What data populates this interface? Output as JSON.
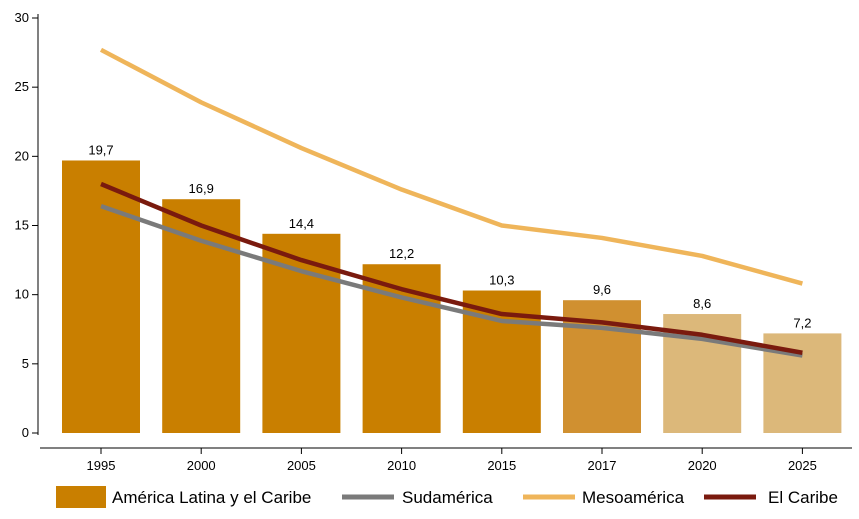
{
  "chart_data": {
    "type": "bar",
    "categories": [
      "1995",
      "2000",
      "2005",
      "2010",
      "2015",
      "2017",
      "2020",
      "2025"
    ],
    "bar_series": {
      "name": "América Latina y el Caribe",
      "values": [
        19.7,
        16.9,
        14.4,
        12.2,
        10.3,
        9.6,
        8.6,
        7.2
      ],
      "value_labels": [
        "19,7",
        "16,9",
        "14,4",
        "12,2",
        "10,3",
        "9,6",
        "8,6",
        "7,2"
      ],
      "colors": [
        "#c97f00",
        "#c97f00",
        "#c97f00",
        "#c97f00",
        "#c97f00",
        "#d09030",
        "#dcb87a",
        "#dcb87a"
      ]
    },
    "line_series": [
      {
        "name": "Sudamérica",
        "values": [
          16.4,
          13.9,
          11.7,
          9.8,
          8.1,
          7.6,
          6.8,
          5.6
        ],
        "color": "#7a7a7a"
      },
      {
        "name": "Mesoamérica",
        "values": [
          27.7,
          23.9,
          20.6,
          17.6,
          15.0,
          14.1,
          12.8,
          10.8
        ],
        "color": "#efb55a"
      },
      {
        "name": "El Caribe",
        "values": [
          18.0,
          15.0,
          12.5,
          10.4,
          8.6,
          8.0,
          7.1,
          5.8
        ],
        "color": "#7a1a0e"
      }
    ],
    "y_ticks": [
      "0",
      "5",
      "10",
      "15",
      "20",
      "25",
      "30"
    ],
    "ylim": [
      0,
      30
    ],
    "legend_position": "bottom",
    "grid": false
  },
  "legend": [
    {
      "label": "América Latina y el Caribe",
      "type": "box",
      "color": "#c97f00"
    },
    {
      "label": "Sudamérica",
      "type": "line",
      "color": "#7a7a7a"
    },
    {
      "label": "Mesoamérica",
      "type": "line",
      "color": "#efb55a"
    },
    {
      "label": "El Caribe",
      "type": "line",
      "color": "#7a1a0e"
    }
  ]
}
